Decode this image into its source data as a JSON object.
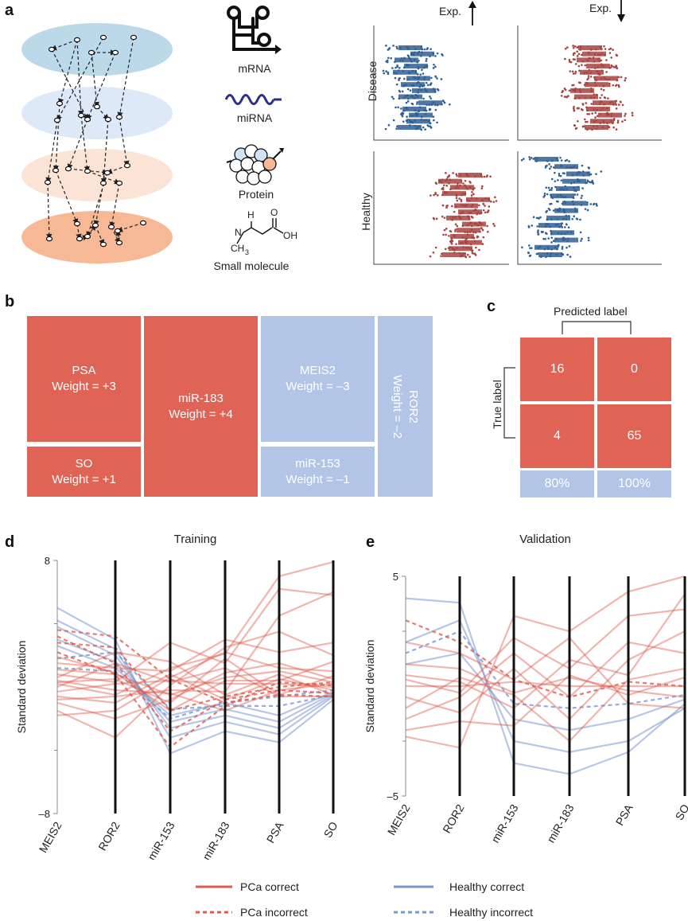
{
  "panel_a": {
    "letter": "a",
    "molecules": [
      "mRNA",
      "miRNA",
      "Protein",
      "Small molecule"
    ],
    "chem": {
      "n": "N",
      "h": "H",
      "ch3": "CH",
      "sub3": "3",
      "o": "O",
      "oh": "OH"
    },
    "exp_up": "Exp.",
    "exp_down": "Exp.",
    "row_labels": [
      "Disease",
      "Healthy"
    ],
    "layer_colors": [
      "#bcd9ea",
      "#dde9f6",
      "#fbe4d6",
      "#f7b995"
    ],
    "series_colors": {
      "blue": "#2f5f93",
      "red": "#a8433f"
    }
  },
  "panel_b": {
    "letter": "b",
    "tiles": [
      {
        "name": "PSA",
        "weight": "Weight = +3",
        "color": "#e06455"
      },
      {
        "name": "SO",
        "weight": "Weight = +1",
        "color": "#e06455"
      },
      {
        "name": "miR-183",
        "weight": "Weight = +4",
        "color": "#e06455"
      },
      {
        "name": "MEIS2",
        "weight": "Weight = –3",
        "color": "#b3c5e6"
      },
      {
        "name": "miR-153",
        "weight": "Weight = –1",
        "color": "#b3c5e6"
      },
      {
        "name": "ROR2",
        "weight": "Weight = –2",
        "color": "#b3c5e6"
      }
    ]
  },
  "panel_c": {
    "letter": "c",
    "predicted_label": "Predicted label",
    "true_label": "True label",
    "matrix": [
      [
        "16",
        "0"
      ],
      [
        "4",
        "65"
      ]
    ],
    "footer": [
      "80%",
      "100%"
    ]
  },
  "chart_data": [
    {
      "type": "parallel-coordinates",
      "panel": "d",
      "title": "Training",
      "ylabel": "Standard deviation",
      "ylim": [
        -8,
        8
      ],
      "yticks": [
        "8",
        "–8"
      ],
      "categories": [
        "MEIS2",
        "ROR2",
        "miR-153",
        "miR-183",
        "PSA",
        "SO"
      ],
      "legend": [
        {
          "label": "PCa correct",
          "color": "#e05a4e",
          "style": "solid"
        },
        {
          "label": "PCa incorrect",
          "color": "#e05a4e",
          "style": "dashed"
        },
        {
          "label": "Healthy correct",
          "color": "#7b97cd",
          "style": "solid"
        },
        {
          "label": "Healthy incorrect",
          "color": "#7b97cd",
          "style": "dashed"
        }
      ],
      "series": [
        {
          "group": "pca_correct",
          "values": [
            0.2,
            -0.5,
            1.2,
            2.1,
            7.0,
            7.9
          ]
        },
        {
          "group": "pca_correct",
          "values": [
            0.8,
            0.3,
            2.8,
            1.5,
            6.2,
            5.8
          ]
        },
        {
          "group": "pca_correct",
          "values": [
            -1.5,
            -3.2,
            0.1,
            2.5,
            3.5,
            2.0
          ]
        },
        {
          "group": "pca_correct",
          "values": [
            1.1,
            0.8,
            -0.5,
            0.6,
            1.0,
            0.3
          ]
        },
        {
          "group": "pca_correct",
          "values": [
            -0.6,
            -1.0,
            0.8,
            -0.8,
            0.5,
            -0.2
          ]
        },
        {
          "group": "pca_correct",
          "values": [
            0.3,
            0.5,
            -1.0,
            1.8,
            -0.5,
            0.7
          ]
        },
        {
          "group": "pca_correct",
          "values": [
            -0.3,
            0.2,
            0.4,
            0.2,
            0.2,
            0.0
          ]
        },
        {
          "group": "pca_correct",
          "values": [
            1.5,
            1.2,
            1.0,
            3.0,
            2.2,
            2.8
          ]
        },
        {
          "group": "pca_correct",
          "values": [
            -1.0,
            -2.0,
            -0.8,
            0.9,
            1.5,
            0.5
          ]
        },
        {
          "group": "pca_correct",
          "values": [
            0.6,
            2.2,
            1.6,
            -0.5,
            0.8,
            -0.5
          ]
        },
        {
          "group": "pca_correct",
          "values": [
            -0.8,
            -0.6,
            -0.2,
            -0.3,
            4.5,
            6.0
          ]
        },
        {
          "group": "pca_correct",
          "values": [
            0.0,
            1.5,
            0.3,
            1.2,
            -0.6,
            -0.6
          ]
        },
        {
          "group": "pca_correct",
          "values": [
            1.9,
            0.9,
            -1.5,
            0.4,
            0.4,
            1.6
          ]
        },
        {
          "group": "pca_correct",
          "values": [
            -1.8,
            -1.5,
            0.6,
            2.2,
            1.2,
            1.0
          ]
        },
        {
          "group": "pca_correct",
          "values": [
            0.4,
            -0.2,
            -0.4,
            -1.5,
            -0.2,
            0.2
          ]
        },
        {
          "group": "pca_incorrect",
          "values": [
            3.6,
            3.2,
            0.5,
            -1.0,
            -0.5,
            -0.6
          ]
        },
        {
          "group": "pca_incorrect",
          "values": [
            2.8,
            2.5,
            -1.5,
            -0.6,
            0.0,
            0.3
          ]
        },
        {
          "group": "pca_incorrect",
          "values": [
            3.2,
            1.5,
            -2.8,
            -0.8,
            -0.2,
            -0.4
          ]
        },
        {
          "group": "pca_incorrect",
          "values": [
            2.2,
            0.8,
            -3.8,
            -1.2,
            0.3,
            0.1
          ]
        },
        {
          "group": "healthy_correct",
          "values": [
            5.0,
            3.0,
            -4.2,
            -2.8,
            -3.5,
            -0.8
          ]
        },
        {
          "group": "healthy_correct",
          "values": [
            4.2,
            2.4,
            -3.2,
            -2.2,
            -3.0,
            -0.6
          ]
        },
        {
          "group": "healthy_correct",
          "values": [
            3.8,
            2.0,
            -2.6,
            -1.8,
            -2.6,
            -0.5
          ]
        },
        {
          "group": "healthy_correct",
          "values": [
            3.0,
            1.6,
            -2.2,
            -1.4,
            -2.2,
            -0.4
          ]
        },
        {
          "group": "healthy_correct",
          "values": [
            2.6,
            1.2,
            -1.8,
            -1.0,
            -1.8,
            -0.3
          ]
        },
        {
          "group": "healthy_incorrect",
          "values": [
            1.8,
            2.2,
            -1.4,
            -1.2,
            -1.2,
            -0.5
          ]
        },
        {
          "group": "healthy_incorrect",
          "values": [
            1.2,
            1.0,
            -2.0,
            -1.0,
            -0.6,
            -0.2
          ]
        }
      ]
    },
    {
      "type": "parallel-coordinates",
      "panel": "e",
      "title": "Validation",
      "ylabel": "Standard deviation",
      "ylim": [
        -5,
        5
      ],
      "yticks": [
        "5",
        "–5"
      ],
      "categories": [
        "MEIS2",
        "ROR2",
        "miR-153",
        "miR-183",
        "PSA",
        "SO"
      ],
      "series": [
        {
          "group": "pca_correct",
          "values": [
            -2.3,
            -2.8,
            3.2,
            2.5,
            4.3,
            5.0
          ]
        },
        {
          "group": "pca_correct",
          "values": [
            0.5,
            0.2,
            -1.0,
            1.2,
            0.5,
            4.2
          ]
        },
        {
          "group": "pca_correct",
          "values": [
            -1.5,
            -0.5,
            1.5,
            -0.5,
            2.0,
            1.5
          ]
        },
        {
          "group": "pca_correct",
          "values": [
            0.0,
            0.0,
            0.2,
            0.0,
            0.0,
            0.0
          ]
        },
        {
          "group": "pca_correct",
          "values": [
            1.0,
            0.8,
            -0.3,
            0.4,
            -0.2,
            -0.5
          ]
        },
        {
          "group": "pca_correct",
          "values": [
            -0.5,
            -1.2,
            0.8,
            -1.5,
            1.2,
            2.5
          ]
        },
        {
          "group": "pca_correct",
          "values": [
            2.0,
            1.5,
            0.3,
            2.2,
            -0.8,
            -1.0
          ]
        },
        {
          "group": "pca_correct",
          "values": [
            -1.0,
            0.4,
            -0.4,
            -2.5,
            0.3,
            0.8
          ]
        },
        {
          "group": "pca_correct",
          "values": [
            0.3,
            -0.3,
            2.2,
            0.8,
            3.2,
            3.5
          ]
        },
        {
          "group": "pca_correct",
          "values": [
            -2.0,
            -1.6,
            -1.8,
            0.5,
            -0.4,
            0.4
          ]
        },
        {
          "group": "pca_incorrect",
          "values": [
            3.0,
            2.0,
            0.3,
            -0.5,
            0.2,
            0.0
          ]
        },
        {
          "group": "healthy_correct",
          "values": [
            4.0,
            3.8,
            -3.5,
            -4.0,
            -3.0,
            -0.8
          ]
        },
        {
          "group": "healthy_correct",
          "values": [
            2.0,
            3.0,
            -2.5,
            -3.0,
            -2.5,
            -1.0
          ]
        },
        {
          "group": "healthy_correct",
          "values": [
            1.0,
            1.5,
            -1.5,
            -2.0,
            -1.5,
            -0.6
          ]
        },
        {
          "group": "healthy_incorrect",
          "values": [
            1.5,
            2.5,
            -0.8,
            -1.0,
            -0.8,
            -0.4
          ]
        }
      ]
    }
  ]
}
